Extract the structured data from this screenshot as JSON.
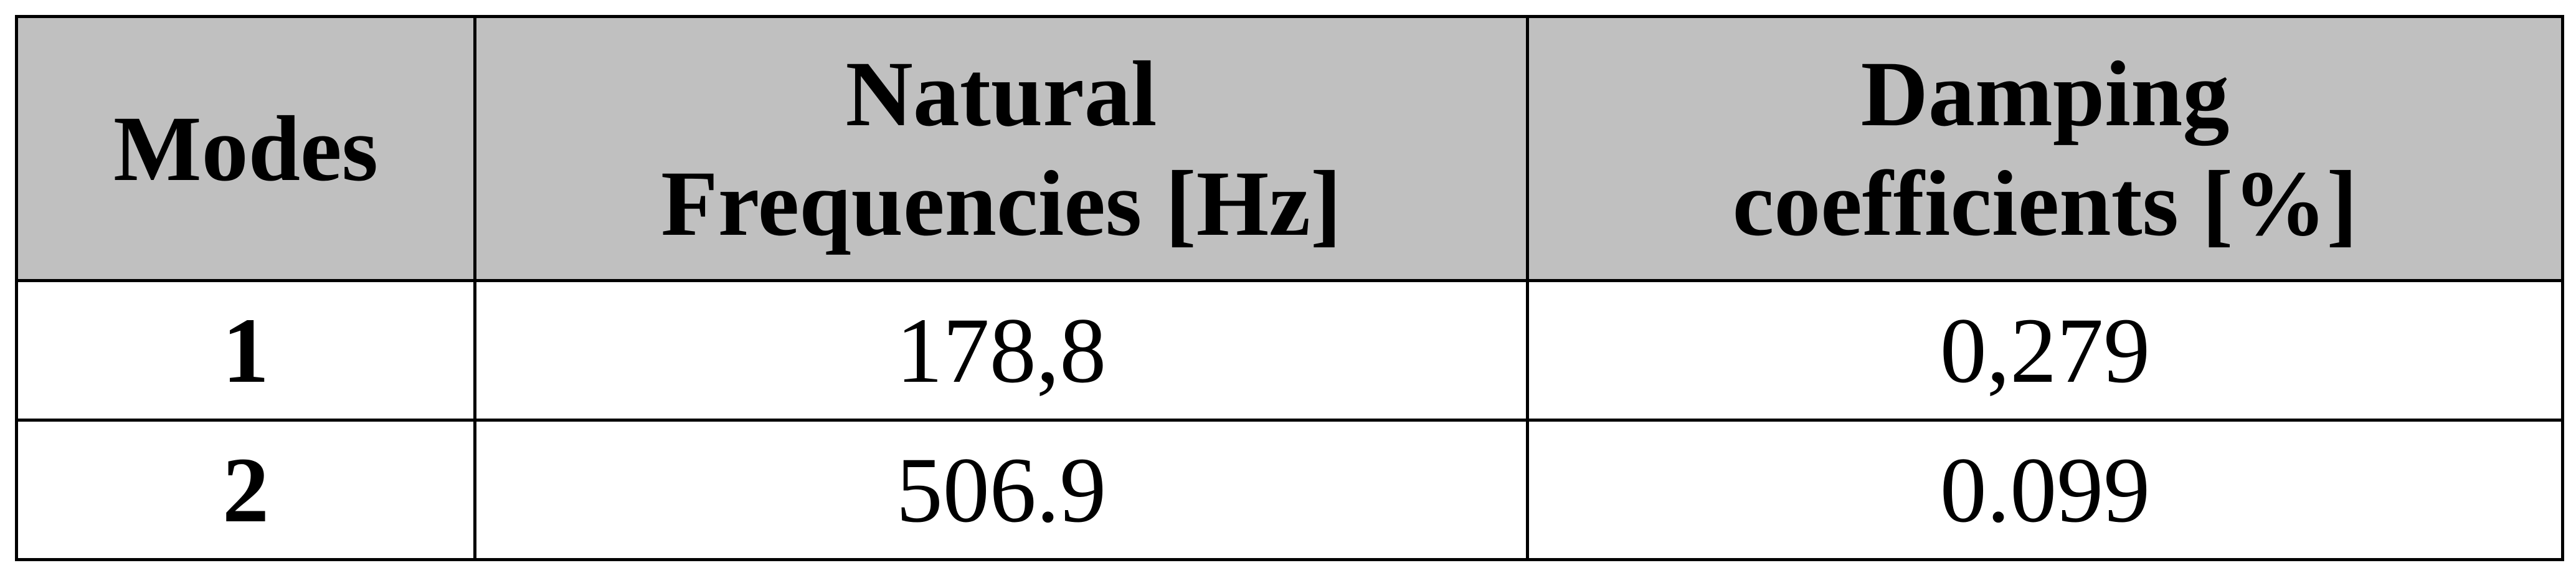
{
  "table": {
    "headers": {
      "mode": [
        "Modes"
      ],
      "frequency": [
        "Natural",
        "Frequencies [Hz]"
      ],
      "damping": [
        "Damping",
        "coefficients [%]"
      ]
    },
    "rows": [
      {
        "mode": "1",
        "frequency": "178,8",
        "damping": "0,279"
      },
      {
        "mode": "2",
        "frequency": "506.9",
        "damping": "0.099"
      }
    ],
    "colors": {
      "header_background": "#c0c0c0",
      "body_background": "#ffffff",
      "border": "#000000",
      "text": "#000000"
    }
  }
}
